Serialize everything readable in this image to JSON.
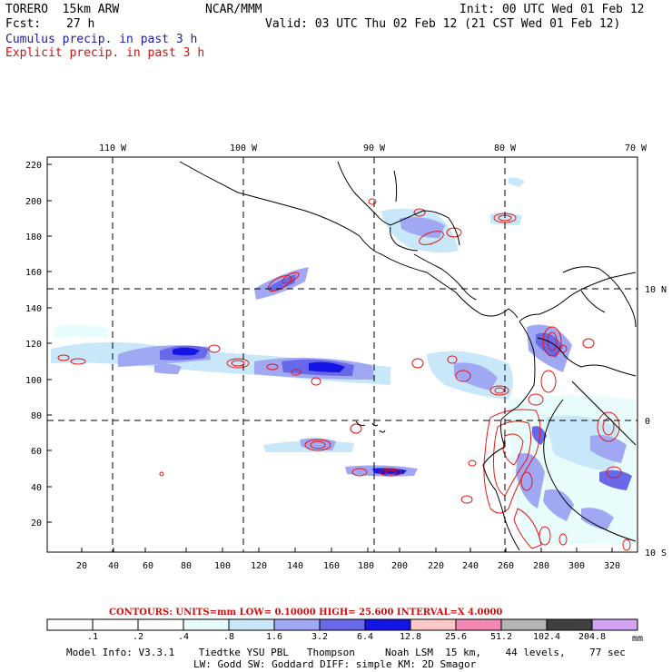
{
  "header": {
    "model": "TORERO  15km ARW",
    "center": "NCAR/MMM",
    "init": "Init: 00 UTC Wed 01 Feb 12",
    "fcst_label": "Fcst:",
    "fcst_value": "27 h",
    "valid": "Valid: 03 UTC Thu 02 Feb 12 (21 CST Wed 01 Feb 12)"
  },
  "legend": {
    "cumulus": "Cumulus precip. in past 3 h",
    "explicit": "Explicit precip. in past 3 h"
  },
  "axes": {
    "top_lon_labels": [
      "110 W",
      "100 W",
      "90 W",
      "80 W",
      "70 W"
    ],
    "right_lat_labels": [
      "10 N",
      "0",
      "10 S"
    ],
    "left_ticks": [
      "220",
      "200",
      "180",
      "160",
      "140",
      "120",
      "100",
      "80",
      "60",
      "40",
      "20"
    ],
    "bottom_ticks": [
      "20",
      "40",
      "60",
      "80",
      "100",
      "120",
      "140",
      "160",
      "180",
      "200",
      "220",
      "240",
      "260",
      "280",
      "300",
      "320"
    ]
  },
  "contours": {
    "label": "CONTOURS:  UNITS=mm  LOW= 0.10000      HIGH=  25.600      INTERVAL=X  4.0000"
  },
  "colorbar": {
    "labels": [
      ".1",
      ".2",
      ".4",
      ".8",
      "1.6",
      "3.2",
      "6.4",
      "12.8",
      "25.6",
      "51.2",
      "102.4",
      "204.8"
    ],
    "units": "mm",
    "colors": [
      "#ffffff",
      "#ffffff",
      "#ffffff",
      "#e8fcfc",
      "#c8e8fa",
      "#a0a8f4",
      "#6868e8",
      "#1414e4",
      "#fcc8c8",
      "#f488b4",
      "#b4b4b4",
      "#404040",
      "#d4a4f4"
    ]
  },
  "model_info": {
    "line1": "Model Info: V3.3.1    Tiedtke YSU PBL   Thompson     Noah LSM  15 km,    44 levels,    77 sec",
    "line2": "LW: Godd SW: Goddard DIFF: simple KM: 2D Smagor"
  },
  "colors": {
    "cumulus": "#1c1c9c",
    "explicit": "#d01010",
    "precip_light": "#c8e8fa",
    "precip_mid": "#6868e8",
    "precip_heavy": "#1414e4",
    "contour": "#e81414"
  }
}
